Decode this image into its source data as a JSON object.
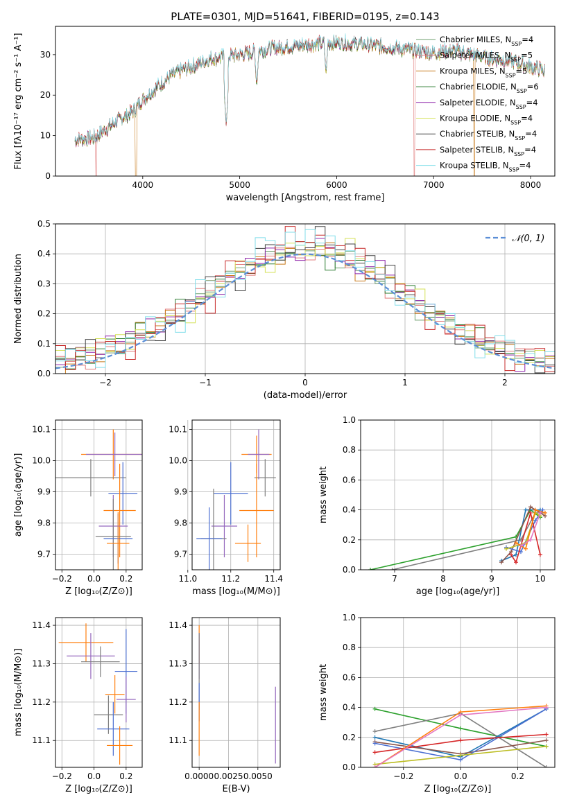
{
  "figure": {
    "title": "PLATE=0301, MJD=51641, FIBERID=0195, z=0.143"
  },
  "colors": {
    "series": [
      "#6d9f6d",
      "#e07b7b",
      "#c87a1a",
      "#2e7d32",
      "#8e24aa",
      "#d4e157",
      "#424242",
      "#c62828",
      "#80deea"
    ],
    "points": [
      "#1f77b4",
      "#ff7f0e",
      "#2ca02c",
      "#d62728",
      "#9467bd",
      "#8c564b",
      "#e377c2",
      "#7f7f7f",
      "#bcbd22",
      "#17becf",
      "#4b6fd1",
      "#cc2222"
    ],
    "normal_curve": "#5b8ed6"
  },
  "chart_data": [
    {
      "id": "spectrum",
      "type": "line",
      "title": "PLATE=0301, MJD=51641, FIBERID=0195, z=0.143",
      "xlabel": "wavelength [Angstrom, rest frame]",
      "ylabel": "Flux [fλ10⁻¹⁷ erg cm⁻² s⁻¹ A⁻¹]",
      "xlim": [
        3100,
        8250
      ],
      "ylim": [
        0,
        37
      ],
      "xticks": [
        "4000",
        "5000",
        "6000",
        "7000",
        "8000"
      ],
      "yticks": [
        "0",
        "10",
        "20",
        "30"
      ],
      "legend_position": "top-right",
      "series_names": [
        "Chabrier MILES, N_SSP=4",
        "Salpeter MILES, N_SSP=5",
        "Kroupa MILES, N_SSP=5",
        "Chabrier ELODIE, N_SSP=6",
        "Salpeter ELODIE, N_SSP=4",
        "Kroupa ELODIE, N_SSP=4",
        "Chabrier STELIB, N_SSP=4",
        "Salpeter STELIB, N_SSP=4",
        "Kroupa STELIB, N_SSP=4"
      ],
      "continuum": {
        "x": [
          3300,
          3500,
          3700,
          3900,
          4000,
          4100,
          4300,
          4500,
          4700,
          5000,
          5300,
          5500,
          5700,
          6000,
          6300,
          6500,
          6800,
          7000,
          7200,
          7400,
          7600,
          7800,
          8000,
          8150
        ],
        "y": [
          9,
          9.5,
          13,
          16,
          19,
          21,
          25,
          27,
          29,
          30,
          31.5,
          32,
          32.5,
          33,
          32.5,
          32,
          31,
          30.5,
          31,
          30,
          29,
          28.5,
          27,
          26
        ]
      },
      "absorption_features": [
        {
          "x": 4861,
          "y": 12.5
        },
        {
          "x": 5175,
          "y": 22
        },
        {
          "x": 5890,
          "y": 25
        }
      ],
      "spikes_to_zero": [
        3520,
        3930,
        6800,
        7420
      ]
    },
    {
      "id": "residuals",
      "type": "histogram",
      "xlabel": "(data-model)/error",
      "ylabel": "Normed distribution",
      "xlim": [
        -2.5,
        2.5
      ],
      "ylim": [
        0,
        0.5
      ],
      "xticks": [
        "−2",
        "−1",
        "0",
        "1",
        "2"
      ],
      "yticks": [
        "0.0",
        "0.1",
        "0.2",
        "0.3",
        "0.4",
        "0.5"
      ],
      "grid": true,
      "legend_position": "top-right",
      "normal_label": "𝒩(0, 1)",
      "bin_width": 0.1,
      "variation": [
        0.02,
        0.0,
        0.03,
        0.01,
        0.05,
        0.03,
        0.0,
        -0.03,
        0.02,
        0.05,
        0.04,
        -0.01,
        0.02,
        0.0,
        0.03,
        0.07,
        0.04,
        0.02,
        0.06,
        0.03,
        0.05,
        0.02,
        0.06,
        0.0,
        0.03,
        0.01,
        0.04,
        0.03,
        0.0,
        -0.02
      ]
    },
    {
      "id": "age-vs-Z",
      "type": "scatter",
      "xlabel": "Z [log₁₀(Z/Z⊙)]",
      "ylabel": "age  [log₁₀(age/yr)]",
      "xlim": [
        -0.24,
        0.3
      ],
      "ylim": [
        9.65,
        10.13
      ],
      "xticks": [
        "−0.2",
        "0.0",
        "0.2"
      ],
      "yticks": [
        "9.7",
        "9.8",
        "9.9",
        "10.0",
        "10.1"
      ],
      "grid": true,
      "points": [
        {
          "x": 0.12,
          "y": 10.02,
          "xerr": 0.2,
          "yerr": 0.08
        },
        {
          "x": 0.13,
          "y": 10.02,
          "xerr": 0.18,
          "yerr": 0.07
        },
        {
          "x": -0.02,
          "y": 9.945,
          "xerr": 0.22,
          "yerr": 0.06
        },
        {
          "x": 0.18,
          "y": 9.895,
          "xerr": 0.09,
          "yerr": 0.1
        },
        {
          "x": 0.16,
          "y": 9.84,
          "xerr": 0.1,
          "yerr": 0.15
        },
        {
          "x": 0.12,
          "y": 9.79,
          "xerr": 0.09,
          "yerr": 0.1
        },
        {
          "x": 0.12,
          "y": 9.757,
          "xerr": 0.11,
          "yerr": 0.12
        },
        {
          "x": 0.15,
          "y": 9.75,
          "xerr": 0.09,
          "yerr": 0.08
        },
        {
          "x": 0.15,
          "y": 9.735,
          "xerr": 0.07,
          "yerr": 0.1
        }
      ]
    },
    {
      "id": "age-vs-mass",
      "type": "scatter",
      "xlabel": "mass [log₁₀(M/M⊙)]",
      "xlim": [
        11.02,
        11.43
      ],
      "ylim": [
        9.65,
        10.13
      ],
      "xticks": [
        "11.0",
        "11.2",
        "11.4"
      ],
      "yticks": [
        "9.7",
        "9.8",
        "9.9",
        "10.0",
        "10.1"
      ],
      "grid": true,
      "points": [
        {
          "x": 11.32,
          "y": 10.02,
          "xerr": 0.07,
          "yerr": 0.06
        },
        {
          "x": 11.33,
          "y": 10.02,
          "xerr": 0.05,
          "yerr": 0.08
        },
        {
          "x": 11.36,
          "y": 9.945,
          "xerr": 0.05,
          "yerr": 0.06
        },
        {
          "x": 11.2,
          "y": 9.895,
          "xerr": 0.08,
          "yerr": 0.1
        },
        {
          "x": 11.32,
          "y": 9.84,
          "xerr": 0.08,
          "yerr": 0.15
        },
        {
          "x": 11.17,
          "y": 9.79,
          "xerr": 0.06,
          "yerr": 0.1
        },
        {
          "x": 11.12,
          "y": 9.75,
          "xerr": 0.06,
          "yerr": 0.16
        },
        {
          "x": 11.1,
          "y": 9.75,
          "xerr": 0.06,
          "yerr": 0.1
        },
        {
          "x": 11.28,
          "y": 9.735,
          "xerr": 0.06,
          "yerr": 0.06
        }
      ]
    },
    {
      "id": "massweight-vs-age",
      "type": "line",
      "xlabel": "age  [log₁₀(age/yr)]",
      "ylabel": "mass weight",
      "xlim": [
        6.3,
        10.3
      ],
      "ylim": [
        0,
        1
      ],
      "xticks": [
        "7",
        "8",
        "9",
        "10"
      ],
      "yticks": [
        "0.0",
        "0.2",
        "0.4",
        "0.6",
        "0.8",
        "1.0"
      ],
      "grid": true,
      "series": [
        {
          "x": [
            6.5,
            9.5,
            9.8,
            10.0
          ],
          "y": [
            0.0,
            0.22,
            0.4,
            0.35
          ]
        },
        {
          "x": [
            6.95,
            9.6,
            9.9,
            10.1
          ],
          "y": [
            0.0,
            0.2,
            0.38,
            0.38
          ]
        },
        {
          "x": [
            9.2,
            9.5,
            9.7,
            10.0
          ],
          "y": [
            0.06,
            0.1,
            0.4,
            0.4
          ]
        },
        {
          "x": [
            9.2,
            9.4,
            9.8,
            10.1
          ],
          "y": [
            0.05,
            0.12,
            0.42,
            0.36
          ]
        },
        {
          "x": [
            9.3,
            9.6,
            9.9,
            10.05
          ],
          "y": [
            0.15,
            0.12,
            0.33,
            0.4
          ]
        },
        {
          "x": [
            9.4,
            9.5,
            9.8,
            10.0
          ],
          "y": [
            0.1,
            0.05,
            0.38,
            0.1
          ]
        },
        {
          "x": [
            9.3,
            9.7,
            9.9,
            10.0
          ],
          "y": [
            0.14,
            0.18,
            0.38,
            0.36
          ]
        },
        {
          "x": [
            9.5,
            9.7,
            9.9,
            10.1
          ],
          "y": [
            0.18,
            0.14,
            0.4,
            0.38
          ]
        },
        {
          "x": [
            9.6,
            9.8,
            10.0
          ],
          "y": [
            0.16,
            0.2,
            0.38
          ]
        }
      ]
    },
    {
      "id": "mass-vs-Z",
      "type": "scatter",
      "xlabel": "Z [log₁₀(Z/Z⊙)]",
      "ylabel": "mass [log₁₀(M/M⊙)]",
      "xlim": [
        -0.24,
        0.3
      ],
      "ylim": [
        11.03,
        11.42
      ],
      "xticks": [
        "−0.2",
        "0.0",
        "0.2"
      ],
      "yticks": [
        "11.1",
        "11.2",
        "11.3",
        "11.4"
      ],
      "grid": true,
      "points": [
        {
          "x": -0.05,
          "y": 11.355,
          "xerr": 0.17,
          "yerr": 0.05
        },
        {
          "x": -0.02,
          "y": 11.32,
          "xerr": 0.15,
          "yerr": 0.06
        },
        {
          "x": 0.04,
          "y": 11.305,
          "xerr": 0.12,
          "yerr": 0.04
        },
        {
          "x": 0.2,
          "y": 11.28,
          "xerr": 0.07,
          "yerr": 0.11
        },
        {
          "x": 0.13,
          "y": 11.22,
          "xerr": 0.06,
          "yerr": 0.05
        },
        {
          "x": 0.2,
          "y": 11.207,
          "xerr": 0.06,
          "yerr": 0.06
        },
        {
          "x": 0.09,
          "y": 11.167,
          "xerr": 0.09,
          "yerr": 0.05
        },
        {
          "x": 0.12,
          "y": 11.13,
          "xerr": 0.1,
          "yerr": 0.07
        },
        {
          "x": 0.16,
          "y": 11.087,
          "xerr": 0.08,
          "yerr": 0.05
        }
      ]
    },
    {
      "id": "mass-vs-EBV",
      "type": "scatter",
      "xlabel": "E(B-V)",
      "xlim": [
        -0.0006,
        0.0069
      ],
      "ylim": [
        11.03,
        11.42
      ],
      "xticks": [
        "0.0000",
        "0.0025",
        "0.0050"
      ],
      "yticks": [
        "11.1",
        "11.2",
        "11.3",
        "11.4"
      ],
      "grid": true,
      "points": [
        {
          "x": 0.0,
          "y": 11.35,
          "xerr": 0,
          "yerr": 0.05
        },
        {
          "x": 0.0,
          "y": 11.32,
          "xerr": 0,
          "yerr": 0.06
        },
        {
          "x": 0.0,
          "y": 11.28,
          "xerr": 0,
          "yerr": 0.1
        },
        {
          "x": 0.0,
          "y": 11.2,
          "xerr": 0,
          "yerr": 0.05
        },
        {
          "x": 0.0,
          "y": 11.13,
          "xerr": 0,
          "yerr": 0.07
        },
        {
          "x": 0.0065,
          "y": 11.14,
          "xerr": 0,
          "yerr": 0.1
        }
      ]
    },
    {
      "id": "massweight-vs-Z",
      "type": "line",
      "xlabel": "Z [log₁₀(Z/Z⊙)]",
      "ylabel": "mass weight",
      "xlim": [
        -0.35,
        0.33
      ],
      "ylim": [
        0,
        1
      ],
      "xticks": [
        "−0.2",
        "0.0",
        "0.2"
      ],
      "yticks": [
        "0.0",
        "0.2",
        "0.4",
        "0.6",
        "0.8",
        "1.0"
      ],
      "grid": true,
      "series": [
        {
          "x": [
            -0.3,
            0.0,
            0.3
          ],
          "y": [
            0.39,
            0.26,
            0.14
          ]
        },
        {
          "x": [
            -0.3,
            0.0,
            0.3
          ],
          "y": [
            0.24,
            0.36,
            0.0
          ]
        },
        {
          "x": [
            -0.3,
            0.0,
            0.3
          ],
          "y": [
            0.2,
            0.07,
            0.39
          ]
        },
        {
          "x": [
            -0.3,
            0.0,
            0.3
          ],
          "y": [
            0.17,
            0.09,
            0.18
          ]
        },
        {
          "x": [
            -0.3,
            0.0,
            0.3
          ],
          "y": [
            0.16,
            0.05,
            0.39
          ]
        },
        {
          "x": [
            -0.3,
            0.0,
            0.3
          ],
          "y": [
            0.1,
            0.18,
            0.22
          ]
        },
        {
          "x": [
            -0.3,
            0.0,
            0.3
          ],
          "y": [
            0.02,
            0.08,
            0.14
          ]
        },
        {
          "x": [
            -0.3,
            0.0,
            0.3
          ],
          "y": [
            0.0,
            0.37,
            0.41
          ]
        },
        {
          "x": [
            -0.3,
            0.0,
            0.3
          ],
          "y": [
            0.0,
            0.35,
            0.4
          ]
        }
      ]
    }
  ]
}
